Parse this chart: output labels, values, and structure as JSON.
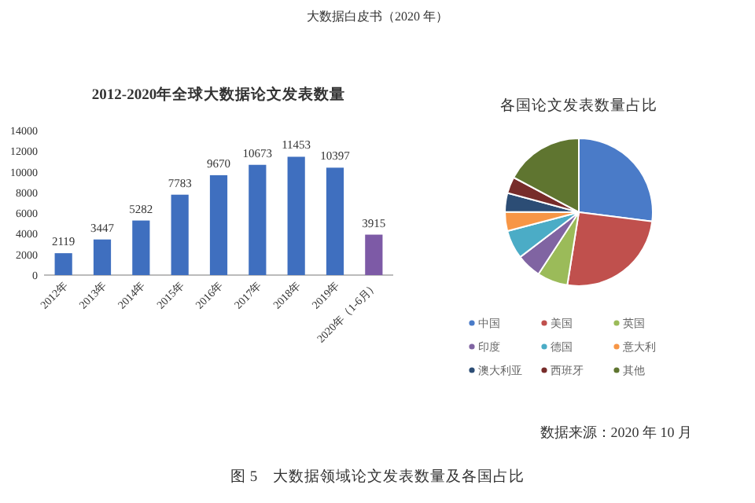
{
  "chart_data": [
    {
      "type": "bar",
      "title": "2012-2020年全球大数据论文发表数量",
      "categories": [
        "2012年",
        "2013年",
        "2014年",
        "2015年",
        "2016年",
        "2017年",
        "2018年",
        "2019年",
        "2020年（1-6月）"
      ],
      "values": [
        2119,
        3447,
        5282,
        7783,
        9670,
        10673,
        11453,
        10397,
        3915
      ],
      "colors": [
        "#3f6fbf",
        "#3f6fbf",
        "#3f6fbf",
        "#3f6fbf",
        "#3f6fbf",
        "#3f6fbf",
        "#3f6fbf",
        "#3f6fbf",
        "#7d5aa6"
      ],
      "ylim": [
        0,
        14000
      ],
      "yticks": [
        0,
        2000,
        4000,
        6000,
        8000,
        10000,
        12000,
        14000
      ],
      "data_labels": true,
      "annotations": [
        "大数据白皮书（2020 年）",
        "图 5　大数据领域论文发表数量及各国占比"
      ]
    },
    {
      "type": "pie",
      "title": "各国论文发表数量占比",
      "categories": [
        "中国",
        "美国",
        "英国",
        "印度",
        "德国",
        "意大利",
        "澳大利亚",
        "西班牙",
        "其他"
      ],
      "values": [
        27,
        25.5,
        6.7,
        5.4,
        6.3,
        4.2,
        4.1,
        3.6,
        17.2
      ],
      "colors": [
        "#4a7bc8",
        "#c0504d",
        "#9bbb59",
        "#8064a2",
        "#4bacc6",
        "#f79646",
        "#2c4d75",
        "#772c2a",
        "#5f7530"
      ],
      "legend": "bottom",
      "annotations": [
        "数据来源：2020 年 10 月"
      ]
    }
  ]
}
